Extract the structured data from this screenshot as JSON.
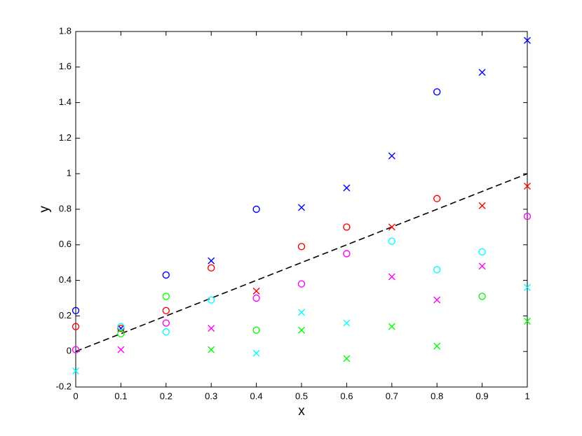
{
  "chart_data": {
    "type": "scatter",
    "x_label": "x",
    "y_label": "y",
    "x": [
      0,
      0.1,
      0.2,
      0.3,
      0.4,
      0.5,
      0.6,
      0.7,
      0.8,
      0.9,
      1
    ],
    "series": [
      {
        "color": "#0000ff",
        "markers": [
          "o",
          "x",
          "o",
          "x",
          "o",
          "x",
          "x",
          "x",
          "o",
          "x",
          "x"
        ],
        "values": [
          0.23,
          0.13,
          0.43,
          0.51,
          0.8,
          0.81,
          0.92,
          1.1,
          1.46,
          1.57,
          1.75
        ]
      },
      {
        "color": "#ff0000",
        "markers": [
          "o",
          "o",
          "o",
          "o",
          "x",
          "o",
          "o",
          "x",
          "o",
          "x",
          "x"
        ],
        "values": [
          0.14,
          0.13,
          0.23,
          0.47,
          0.34,
          0.59,
          0.7,
          0.7,
          0.86,
          0.82,
          0.93
        ]
      },
      {
        "color": "#00ff00",
        "markers": [
          "o",
          "o",
          "o",
          "x",
          "o",
          "x",
          "x",
          "x",
          "x",
          "o",
          "x"
        ],
        "values": [
          null,
          0.1,
          0.31,
          0.01,
          0.12,
          0.12,
          -0.04,
          0.14,
          0.03,
          0.31,
          0.17
        ]
      },
      {
        "color": "#00ffff",
        "markers": [
          "x",
          "o",
          "o",
          "o",
          "x",
          "x",
          "x",
          "o",
          "o",
          "o",
          "x"
        ],
        "values": [
          -0.11,
          0.14,
          0.11,
          0.29,
          -0.01,
          0.22,
          0.16,
          0.62,
          0.46,
          0.56,
          0.36
        ]
      },
      {
        "color": "#ff00ff",
        "markers": [
          "o",
          "x",
          "o",
          "x",
          "o",
          "o",
          "o",
          "x",
          "x",
          "x",
          "o"
        ],
        "values": [
          0.01,
          0.01,
          0.16,
          0.13,
          0.3,
          0.38,
          0.55,
          0.42,
          0.29,
          0.48,
          0.76
        ]
      }
    ],
    "reference_line": {
      "color": "#000000",
      "x": [
        0,
        1
      ],
      "values": [
        0,
        1
      ]
    },
    "xlim": [
      0,
      1
    ],
    "ylim": [
      -0.2,
      1.8
    ],
    "xticks": [
      0,
      0.1,
      0.2,
      0.3,
      0.4,
      0.5,
      0.6,
      0.7,
      0.8,
      0.9,
      1
    ],
    "yticks": [
      -0.2,
      0,
      0.2,
      0.4,
      0.6,
      0.8,
      1,
      1.2,
      1.4,
      1.6,
      1.8
    ]
  }
}
